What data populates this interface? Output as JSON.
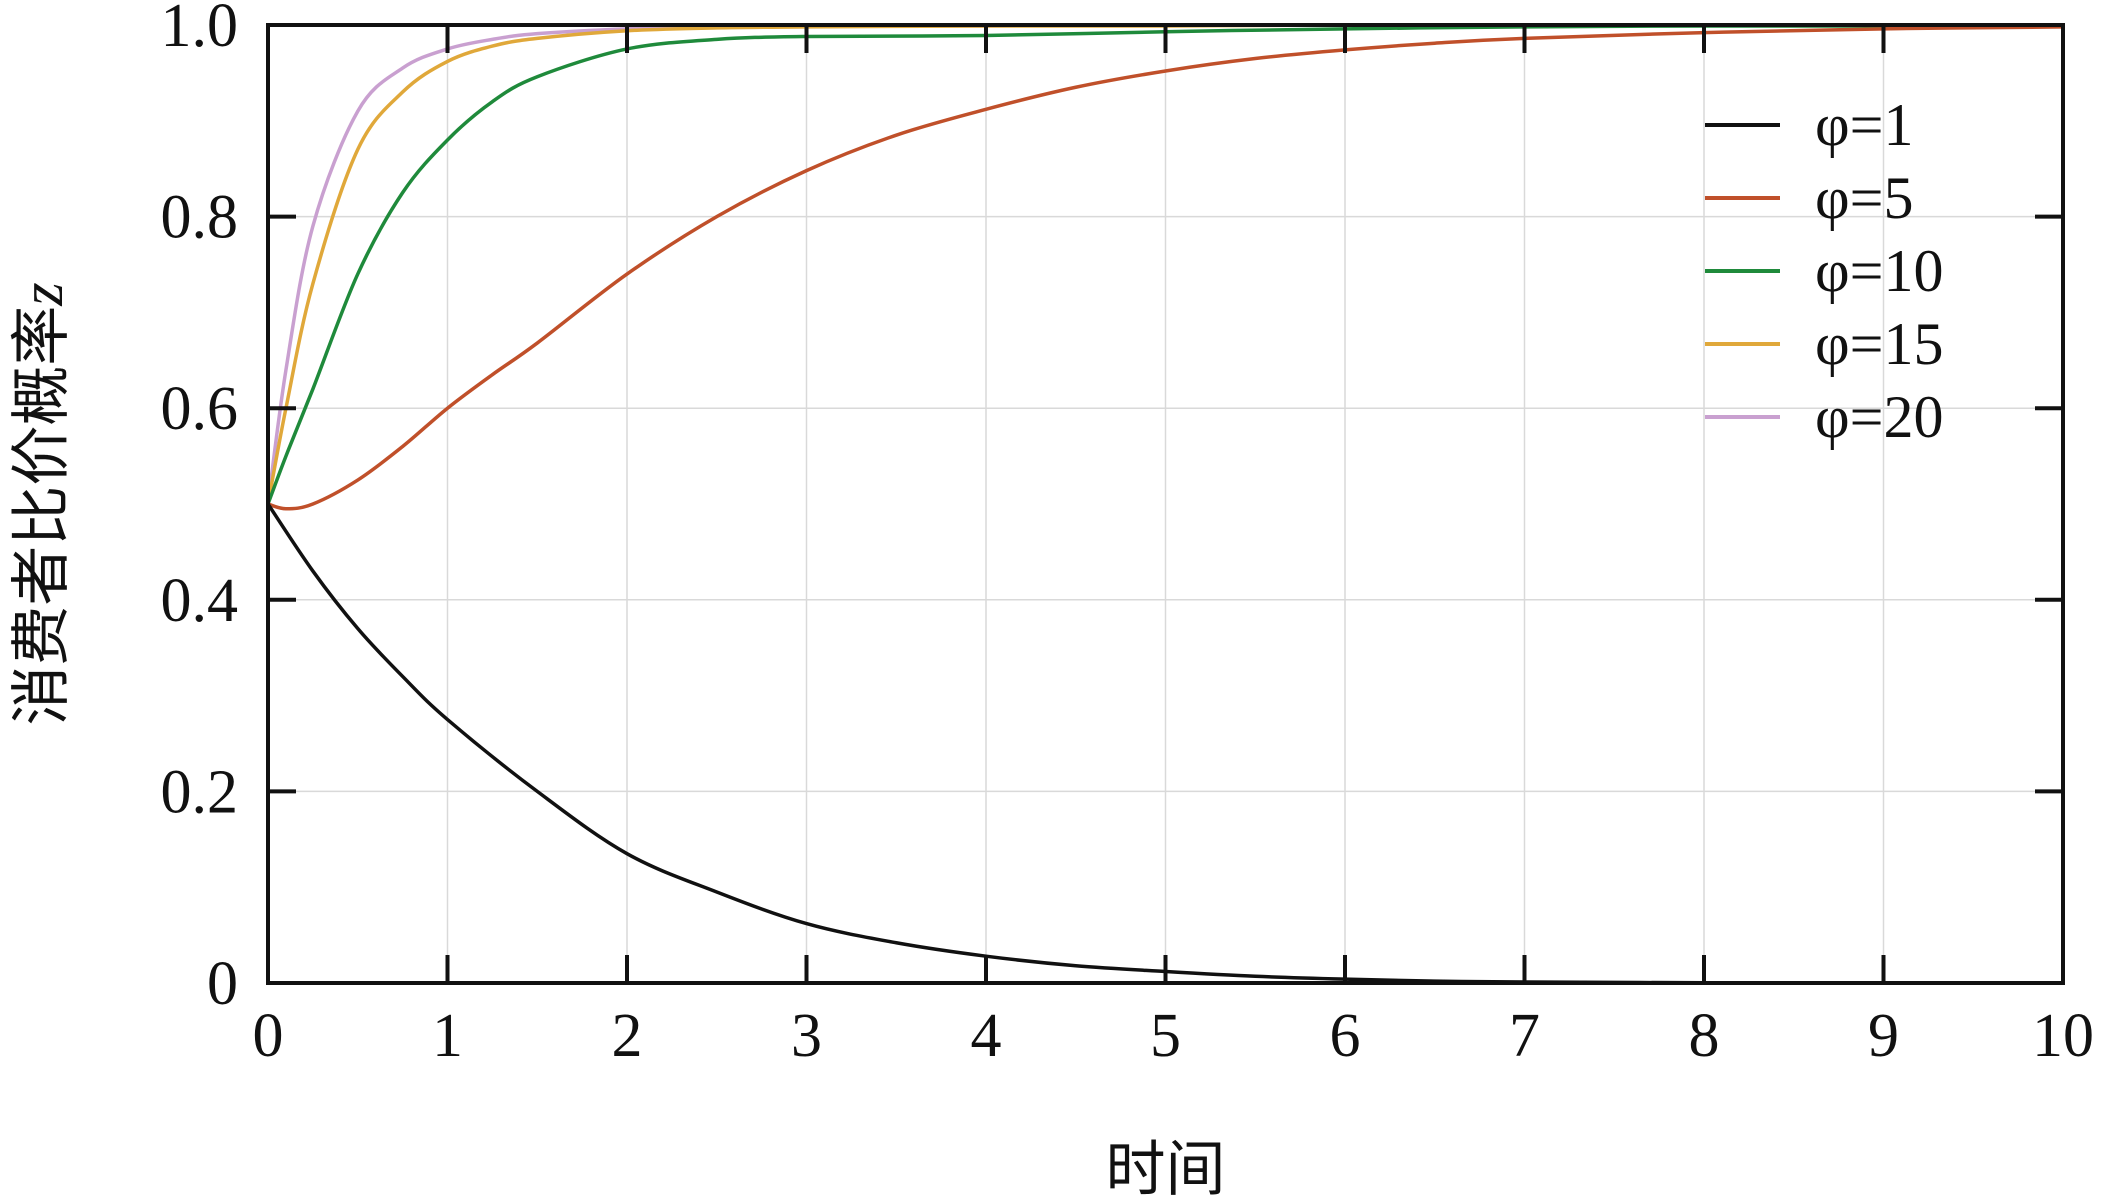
{
  "chart_data": {
    "type": "line",
    "title": "",
    "xlabel": "时间",
    "ylabel": "消费者比价概率",
    "ylabel_var": "z",
    "xlim": [
      0,
      10
    ],
    "ylim": [
      0,
      1.0
    ],
    "x_ticks": [
      0,
      1,
      2,
      3,
      4,
      5,
      6,
      7,
      8,
      9,
      10
    ],
    "x_tick_labels": [
      "0",
      "1",
      "2",
      "3",
      "4",
      "5",
      "6",
      "7",
      "8",
      "9",
      "10"
    ],
    "y_ticks": [
      0,
      0.2,
      0.4,
      0.6,
      0.8,
      1.0
    ],
    "y_tick_labels": [
      "0",
      "0.2",
      "0.4",
      "0.6",
      "0.8",
      "1.0"
    ],
    "grid": true,
    "legend_position": "top-right",
    "series": [
      {
        "name": "φ=1",
        "color": "#111111",
        "x": [
          0,
          0.25,
          0.5,
          0.75,
          1,
          1.5,
          2,
          2.5,
          3,
          3.5,
          4,
          4.5,
          5,
          5.5,
          6,
          6.5,
          7,
          8,
          9,
          10
        ],
        "y": [
          0.5,
          0.43,
          0.37,
          0.32,
          0.275,
          0.2,
          0.135,
          0.095,
          0.062,
          0.042,
          0.028,
          0.018,
          0.012,
          0.007,
          0.004,
          0.002,
          0.001,
          0.0003,
          0.0001,
          0.0
        ]
      },
      {
        "name": "φ=5",
        "color": "#c0502a",
        "x": [
          0,
          0.1,
          0.25,
          0.5,
          0.75,
          1,
          1.25,
          1.5,
          2,
          2.5,
          3,
          3.5,
          4,
          4.5,
          5,
          5.5,
          6,
          6.5,
          7,
          8,
          9,
          10
        ],
        "y": [
          0.5,
          0.495,
          0.5,
          0.525,
          0.56,
          0.6,
          0.635,
          0.668,
          0.74,
          0.8,
          0.848,
          0.885,
          0.912,
          0.935,
          0.952,
          0.965,
          0.974,
          0.981,
          0.986,
          0.992,
          0.996,
          0.998
        ]
      },
      {
        "name": "φ=10",
        "color": "#1f8a3b",
        "x": [
          0,
          0.1,
          0.25,
          0.5,
          0.75,
          1,
          1.25,
          1.5,
          2,
          2.5,
          3,
          4,
          5,
          6,
          7,
          8,
          9,
          10
        ],
        "y": [
          0.5,
          0.55,
          0.62,
          0.74,
          0.825,
          0.88,
          0.92,
          0.946,
          0.975,
          0.985,
          0.988,
          0.989,
          0.993,
          0.996,
          0.998,
          0.999,
          0.999,
          1.0
        ]
      },
      {
        "name": "φ=15",
        "color": "#e0a83a",
        "x": [
          0,
          0.1,
          0.25,
          0.5,
          0.75,
          1,
          1.25,
          1.5,
          2,
          2.5,
          3,
          4,
          5,
          6,
          8,
          10
        ],
        "y": [
          0.5,
          0.6,
          0.73,
          0.87,
          0.93,
          0.962,
          0.978,
          0.986,
          0.994,
          0.997,
          0.998,
          0.999,
          0.999,
          1.0,
          1.0,
          1.0
        ]
      },
      {
        "name": "φ=20",
        "color": "#c9a0d0",
        "x": [
          0,
          0.1,
          0.25,
          0.5,
          0.75,
          1,
          1.25,
          1.5,
          2,
          2.5,
          3,
          4,
          5,
          6,
          8,
          10
        ],
        "y": [
          0.5,
          0.64,
          0.79,
          0.91,
          0.955,
          0.975,
          0.985,
          0.991,
          0.996,
          0.998,
          0.999,
          0.999,
          1.0,
          1.0,
          1.0,
          1.0
        ]
      }
    ]
  }
}
